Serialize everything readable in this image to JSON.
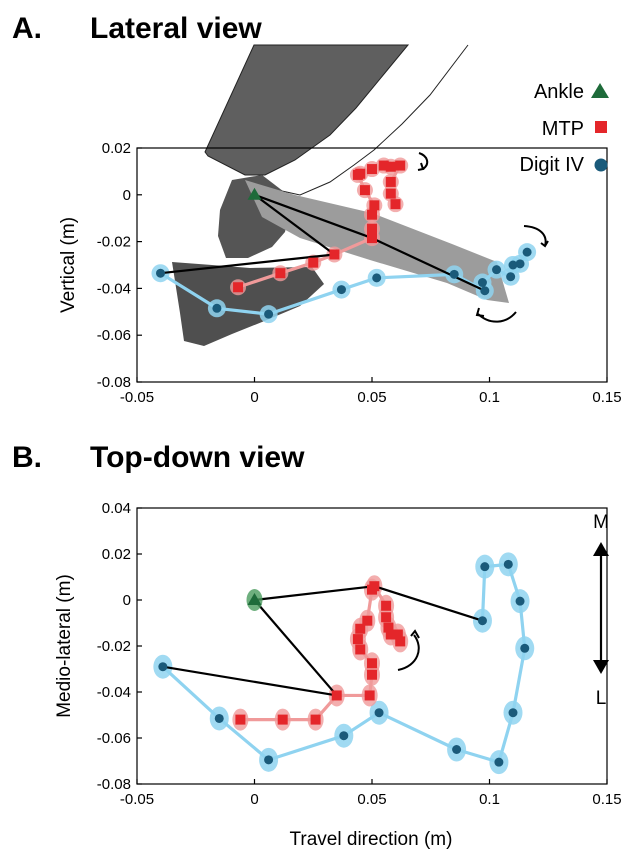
{
  "colors": {
    "ankle": "#1e6b3a",
    "mtp": "#e4262a",
    "mtp_trail": "#f09a9a",
    "digit": "#1a5a7a",
    "digit_trail": "#8fd3f0",
    "foot_dark": "#555555",
    "foot_mid": "#7a7a7a",
    "foot_light": "#a8a8a8"
  },
  "chart_data": [
    {
      "panel": "A.",
      "title": "Lateral view",
      "type": "line",
      "xlabel": "",
      "ylabel": "Vertical (m)",
      "xlim": [
        -0.05,
        0.15
      ],
      "ylim": [
        -0.08,
        0.02
      ],
      "xticks": [
        -0.05,
        0,
        0.05,
        0.1,
        0.15
      ],
      "xtick_labels": [
        "-0.05",
        "0",
        "0.05",
        "0.1",
        "0.15"
      ],
      "yticks": [
        0.02,
        0,
        -0.02,
        -0.04,
        -0.06,
        -0.08
      ],
      "ytick_labels": [
        "0.02",
        "0",
        "-0.02",
        "-0.04",
        "-0.06",
        "-0.08"
      ],
      "legend": [
        {
          "label": "Ankle",
          "marker": "triangle",
          "color": "#1e6b3a"
        },
        {
          "label": "MTP",
          "marker": "square",
          "color": "#e4262a"
        },
        {
          "label": "Digit IV",
          "marker": "circle",
          "color": "#1a5a7a"
        }
      ],
      "legend_position": "top-right",
      "series": [
        {
          "name": "Ankle",
          "points": [
            [
              0.0,
              0.0
            ]
          ]
        },
        {
          "name": "MTP",
          "points": [
            [
              -0.007,
              -0.0395
            ],
            [
              0.011,
              -0.0335
            ],
            [
              0.025,
              -0.029
            ],
            [
              0.034,
              -0.0255
            ],
            [
              0.05,
              -0.0185
            ],
            [
              0.05,
              -0.0145
            ],
            [
              0.05,
              -0.0085
            ],
            [
              0.051,
              -0.0045
            ],
            [
              0.047,
              0.002
            ],
            [
              0.044,
              0.0085
            ],
            [
              0.045,
              0.009
            ],
            [
              0.05,
              0.011
            ],
            [
              0.055,
              0.0125
            ],
            [
              0.058,
              0.012
            ],
            [
              0.062,
              0.0125
            ],
            [
              0.058,
              0.0055
            ],
            [
              0.058,
              0.0005
            ],
            [
              0.06,
              -0.004
            ]
          ]
        },
        {
          "name": "Digit IV",
          "points": [
            [
              -0.04,
              -0.0335
            ],
            [
              -0.016,
              -0.0485
            ],
            [
              0.006,
              -0.051
            ],
            [
              0.037,
              -0.0405
            ],
            [
              0.052,
              -0.0355
            ],
            [
              0.085,
              -0.034
            ],
            [
              0.098,
              -0.041
            ],
            [
              0.097,
              -0.0375
            ],
            [
              0.103,
              -0.032
            ],
            [
              0.109,
              -0.035
            ],
            [
              0.11,
              -0.03
            ],
            [
              0.113,
              -0.0295
            ],
            [
              0.116,
              -0.0245
            ]
          ]
        }
      ]
    },
    {
      "panel": "B.",
      "title": "Top-down view",
      "type": "line",
      "xlabel": "Travel direction (m)",
      "ylabel": "Medio-lateral (m)",
      "xlim": [
        -0.05,
        0.15
      ],
      "ylim": [
        -0.08,
        0.04
      ],
      "xticks": [
        -0.05,
        0,
        0.05,
        0.1,
        0.15
      ],
      "xtick_labels": [
        "-0.05",
        "0",
        "0.05",
        "0.1",
        "0.15"
      ],
      "yticks": [
        0.04,
        0.02,
        0,
        -0.02,
        -0.04,
        -0.06,
        -0.08
      ],
      "ytick_labels": [
        "0.04",
        "0.02",
        "0",
        "-0.02",
        "-0.04",
        "-0.06",
        "-0.08"
      ],
      "direction_labels": {
        "top": "M",
        "bottom": "L"
      },
      "series": [
        {
          "name": "Ankle",
          "points": [
            [
              0.0,
              0.0
            ]
          ]
        },
        {
          "name": "MTP",
          "points": [
            [
              -0.006,
              -0.052
            ],
            [
              0.012,
              -0.052
            ],
            [
              0.026,
              -0.052
            ],
            [
              0.035,
              -0.0415
            ],
            [
              0.049,
              -0.0415
            ],
            [
              0.05,
              -0.0325
            ],
            [
              0.05,
              -0.0275
            ],
            [
              0.045,
              -0.0215
            ],
            [
              0.044,
              -0.017
            ],
            [
              0.045,
              -0.0125
            ],
            [
              0.048,
              -0.009
            ],
            [
              0.05,
              0.0045
            ],
            [
              0.051,
              0.006
            ],
            [
              0.056,
              -0.0025
            ],
            [
              0.056,
              -0.0075
            ],
            [
              0.057,
              -0.012
            ],
            [
              0.058,
              -0.015
            ],
            [
              0.061,
              -0.015
            ],
            [
              0.062,
              -0.018
            ]
          ]
        },
        {
          "name": "Digit IV",
          "points": [
            [
              -0.039,
              -0.029
            ],
            [
              -0.015,
              -0.0515
            ],
            [
              0.006,
              -0.0695
            ],
            [
              0.038,
              -0.059
            ],
            [
              0.053,
              -0.049
            ],
            [
              0.086,
              -0.065
            ],
            [
              0.104,
              -0.0705
            ],
            [
              0.11,
              -0.049
            ],
            [
              0.115,
              -0.021
            ],
            [
              0.113,
              -0.0005
            ],
            [
              0.108,
              0.0155
            ],
            [
              0.098,
              0.0145
            ],
            [
              0.097,
              -0.009
            ]
          ]
        }
      ]
    }
  ]
}
